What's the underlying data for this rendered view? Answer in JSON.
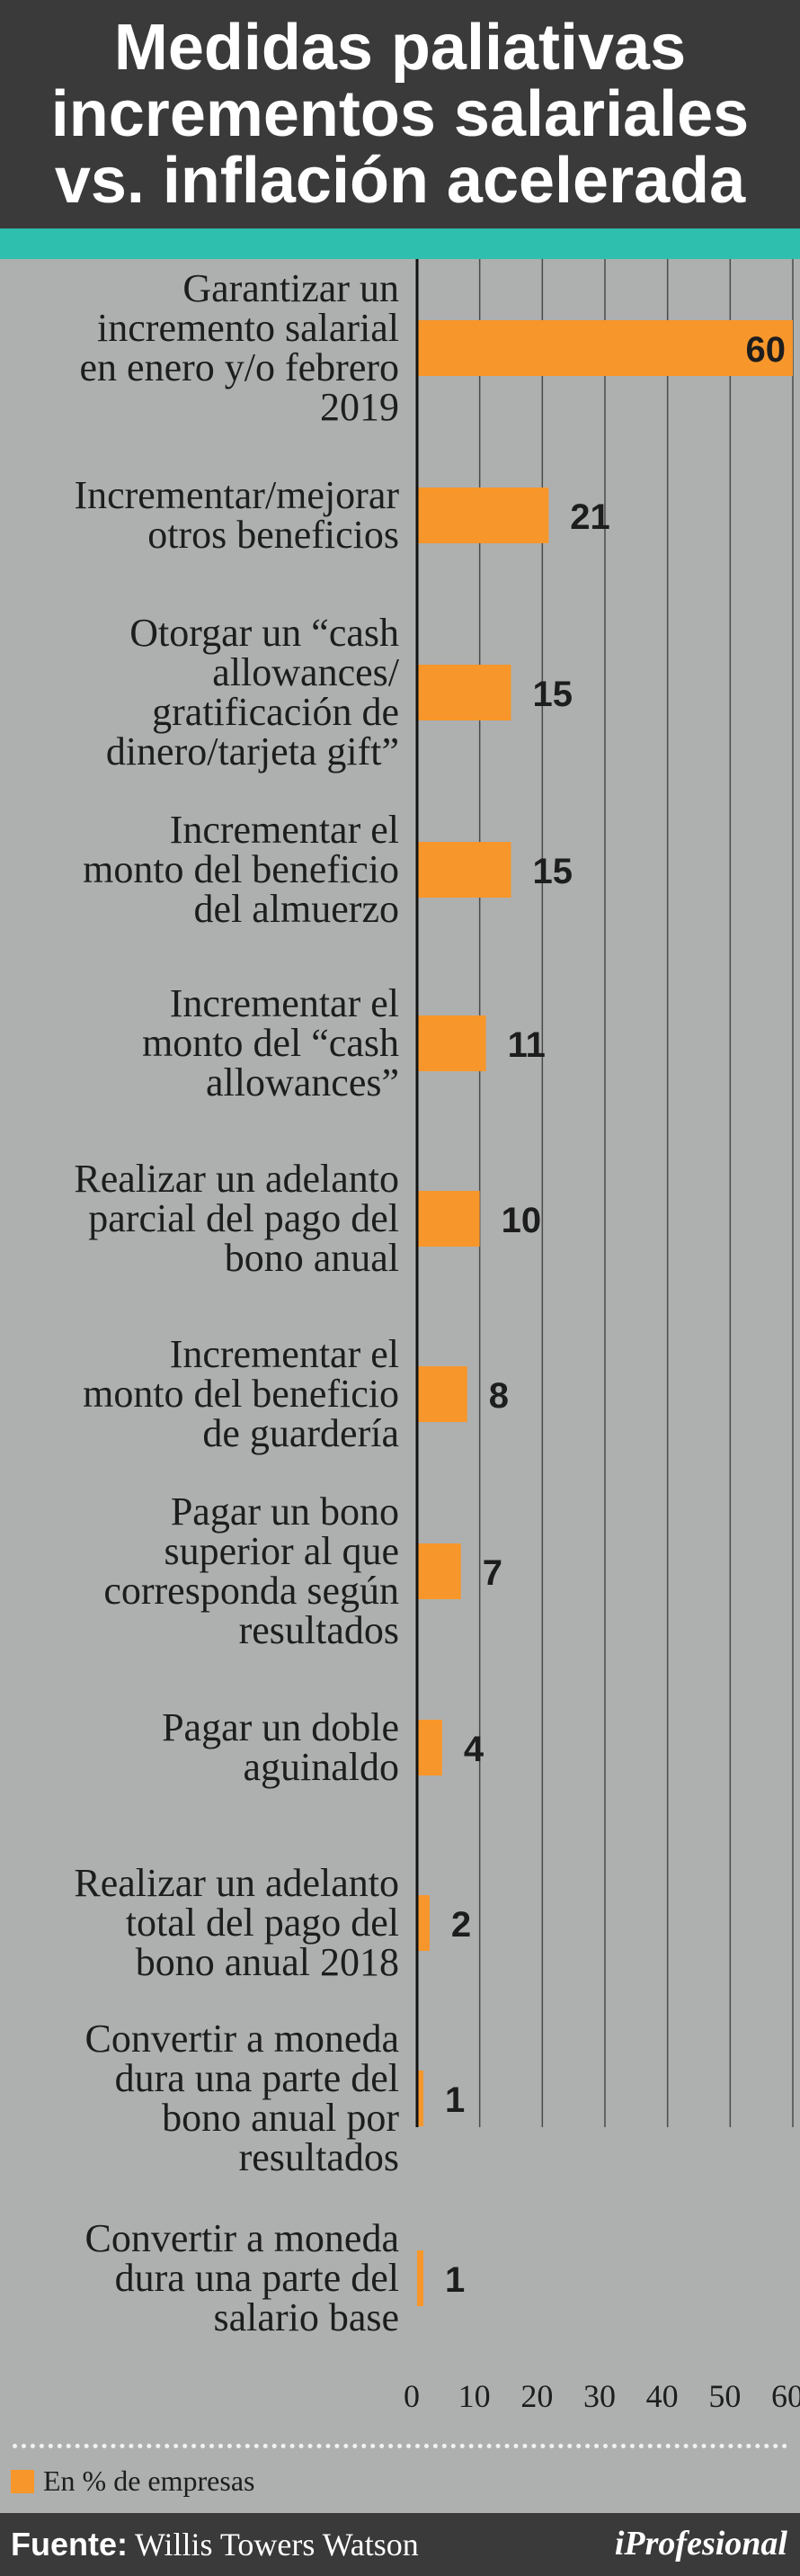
{
  "header": {
    "title_lines": [
      "Medidas paliativas",
      "incrementos salariales",
      "vs. inflación acelerada"
    ]
  },
  "chart_data": {
    "type": "bar",
    "orientation": "horizontal",
    "categories": [
      [
        "Garantizar un",
        "incremento salarial",
        "en enero y/o febrero",
        "2019"
      ],
      [
        "Incrementar/mejorar",
        "otros beneficios"
      ],
      [
        "Otorgar un “cash",
        "allowances/",
        "gratificación de",
        "dinero/tarjeta gift”"
      ],
      [
        "Incrementar el",
        "monto del beneficio",
        "del almuerzo"
      ],
      [
        "Incrementar el",
        "monto del “cash",
        "allowances”"
      ],
      [
        "Realizar un adelanto",
        "parcial del pago del",
        "bono anual"
      ],
      [
        "Incrementar el",
        "monto del beneficio",
        "de guardería"
      ],
      [
        "Pagar un bono",
        "superior al que",
        "corresponda según",
        "resultados"
      ],
      [
        "Pagar un doble",
        "aguinaldo"
      ],
      [
        "Realizar un adelanto",
        "total del pago del",
        "bono anual 2018"
      ],
      [
        "Convertir a moneda",
        "dura una parte del",
        "bono anual por",
        "resultados"
      ],
      [
        "Convertir a moneda",
        "dura una parte del",
        "salario base"
      ]
    ],
    "values": [
      60,
      21,
      15,
      15,
      11,
      10,
      8,
      7,
      4,
      2,
      1,
      1
    ],
    "xlim": [
      0,
      60
    ],
    "xticks": [
      0,
      10,
      20,
      30,
      40,
      50,
      60
    ],
    "grid": true,
    "bar_color": "#f7962a",
    "legend": {
      "label": "En % de empresas",
      "position": "bottom-left"
    }
  },
  "footer": {
    "prefix": "Fuente:",
    "source": "Willis Towers Watson",
    "logo": "iProfesional"
  }
}
